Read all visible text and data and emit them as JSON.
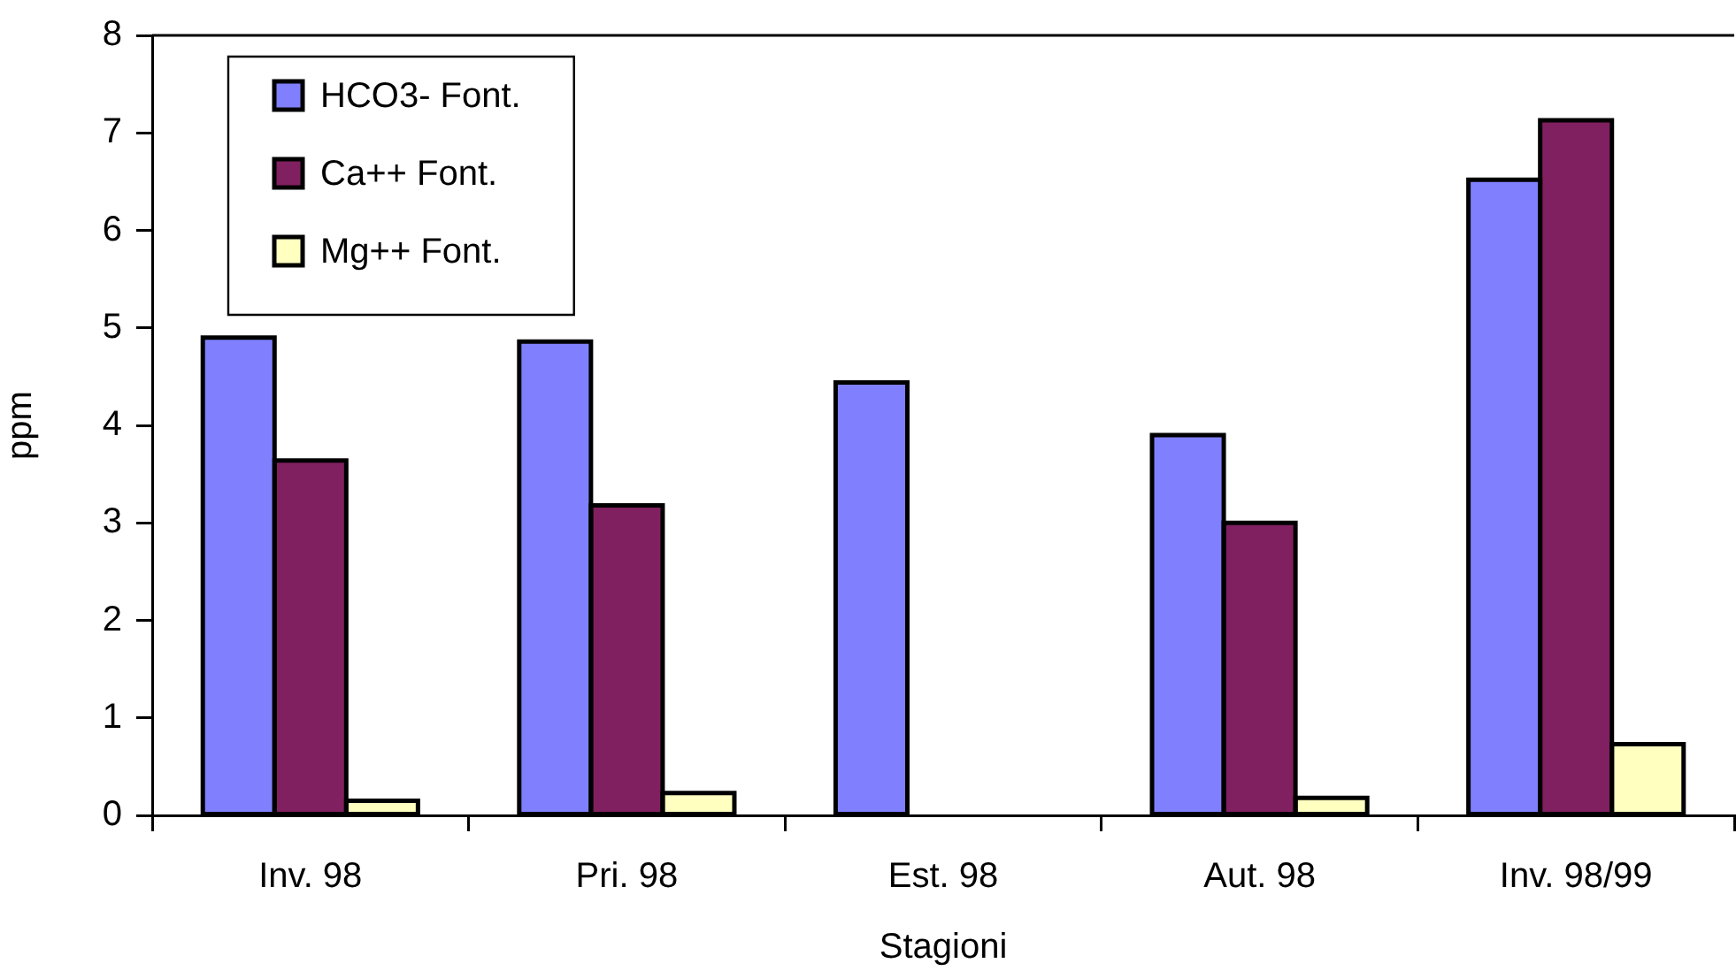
{
  "chart_data": {
    "type": "bar",
    "categories": [
      "Inv. 98",
      "Pri. 98",
      "Est. 98",
      "Aut. 98",
      "Inv. 98/99"
    ],
    "series": [
      {
        "name": "HCO3- Font.",
        "color": "#8080ff",
        "values": [
          4.9,
          4.86,
          4.44,
          3.9,
          6.52
        ]
      },
      {
        "name": "Ca++ Font.",
        "color": "#802060",
        "values": [
          3.64,
          3.18,
          null,
          3.0,
          7.13
        ]
      },
      {
        "name": "Mg++ Font.",
        "color": "#ffffc0",
        "values": [
          0.15,
          0.23,
          null,
          0.18,
          0.73
        ]
      }
    ],
    "xlabel": "Stagioni",
    "ylabel": "ppm",
    "ylim": [
      0,
      8
    ],
    "yticks": [
      0,
      1,
      2,
      3,
      4,
      5,
      6,
      7,
      8
    ],
    "legend": "top left"
  }
}
